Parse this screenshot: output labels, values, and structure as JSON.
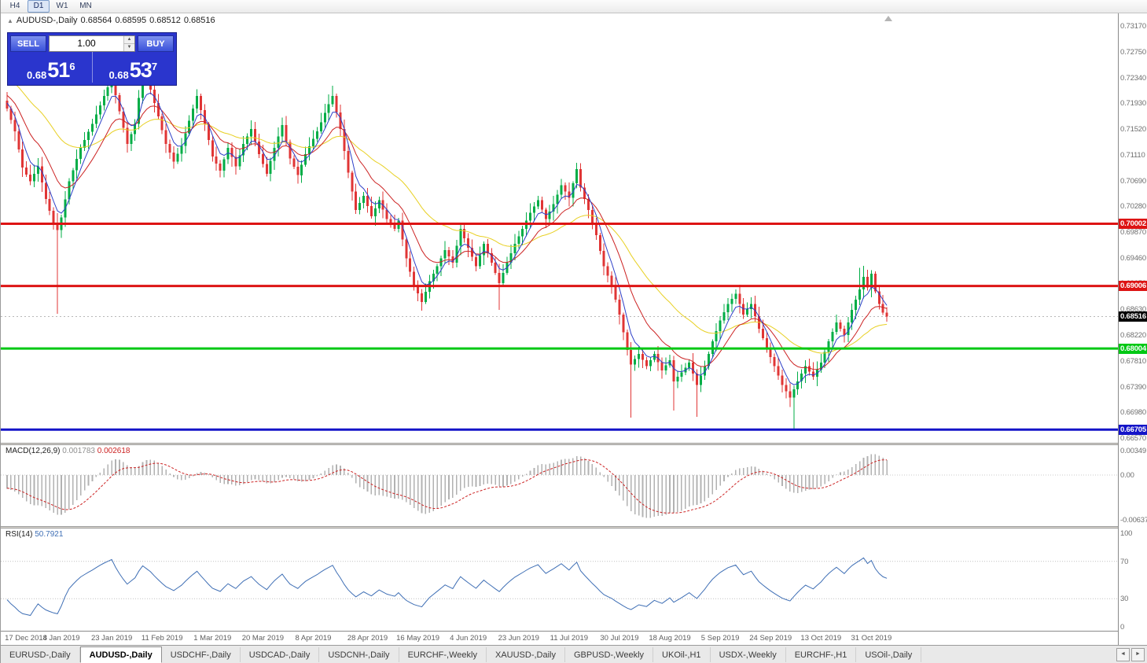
{
  "toolbar": {
    "timeframes": [
      {
        "label": "H4",
        "active": false
      },
      {
        "label": "D1",
        "active": true
      },
      {
        "label": "W1",
        "active": false
      },
      {
        "label": "MN",
        "active": false
      }
    ]
  },
  "symbol_header": {
    "symbol": "AUDUSD-,Daily",
    "open": "0.68564",
    "high": "0.68595",
    "low": "0.68512",
    "close": "0.68516"
  },
  "trade_panel": {
    "sell_label": "SELL",
    "buy_label": "BUY",
    "volume": "1.00",
    "sell_price": {
      "base": "0.68",
      "big": "51",
      "sup": "6"
    },
    "buy_price": {
      "base": "0.68",
      "big": "53",
      "sup": "7"
    }
  },
  "hlines": [
    {
      "price": 0.70002,
      "label": "0.70002",
      "color": "#dd1414",
      "thickness": 3
    },
    {
      "price": 0.69006,
      "label": "0.69006",
      "color": "#dd1414",
      "thickness": 3
    },
    {
      "price": 0.68004,
      "label": "0.68004",
      "color": "#00c814",
      "thickness": 3
    },
    {
      "price": 0.66705,
      "label": "0.66705",
      "color": "#1414c8",
      "thickness": 3
    }
  ],
  "current_price": {
    "value": 0.68516,
    "label": "0.68516"
  },
  "price_axis": {
    "labels": [
      "0.73170",
      "0.72750",
      "0.72340",
      "0.71930",
      "0.71520",
      "0.71110",
      "0.70690",
      "0.70280",
      "0.69870",
      "0.69460",
      "0.69050",
      "0.68630",
      "0.68220",
      "0.67810",
      "0.67390",
      "0.66980",
      "0.66570"
    ]
  },
  "indicators": {
    "macd": {
      "name": "MACD(12,26,9)",
      "value_main": "0.001783",
      "value_signal": "0.002618",
      "axis_labels": [
        "0.00349",
        "0.00",
        "-0.00637"
      ],
      "fast": 12,
      "slow": 26,
      "signal": 9
    },
    "rsi": {
      "name": "RSI(14)",
      "value": "50.7921",
      "axis_labels": [
        "100",
        "70",
        "30",
        "0"
      ],
      "period": 14,
      "levels": [
        70,
        30
      ]
    }
  },
  "chart_data": {
    "type": "candlestick",
    "title": "AUDUSD-,Daily",
    "x_axis": "date",
    "y_axis": "price",
    "visible_range": {
      "top": 0.7317,
      "bottom": 0.6657
    },
    "bars": 228,
    "close_anchors": [
      [
        0,
        0.7185
      ],
      [
        2,
        0.7148
      ],
      [
        4,
        0.709
      ],
      [
        6,
        0.7068
      ],
      [
        8,
        0.7092
      ],
      [
        10,
        0.704
      ],
      [
        12,
        0.7002
      ],
      [
        13,
        0.699
      ],
      [
        14,
        0.701
      ],
      [
        16,
        0.7068
      ],
      [
        19,
        0.7122
      ],
      [
        22,
        0.716
      ],
      [
        25,
        0.7205
      ],
      [
        27,
        0.7232
      ],
      [
        29,
        0.718
      ],
      [
        31,
        0.7128
      ],
      [
        33,
        0.716
      ],
      [
        35,
        0.7243
      ],
      [
        37,
        0.7215
      ],
      [
        39,
        0.7172
      ],
      [
        41,
        0.7128
      ],
      [
        43,
        0.71
      ],
      [
        45,
        0.7125
      ],
      [
        47,
        0.7165
      ],
      [
        49,
        0.7205
      ],
      [
        51,
        0.716
      ],
      [
        53,
        0.7108
      ],
      [
        55,
        0.7085
      ],
      [
        57,
        0.7122
      ],
      [
        59,
        0.7092
      ],
      [
        61,
        0.7128
      ],
      [
        63,
        0.7152
      ],
      [
        65,
        0.7112
      ],
      [
        67,
        0.708
      ],
      [
        69,
        0.7122
      ],
      [
        71,
        0.7158
      ],
      [
        73,
        0.7105
      ],
      [
        75,
        0.7078
      ],
      [
        77,
        0.7112
      ],
      [
        80,
        0.7148
      ],
      [
        82,
        0.7178
      ],
      [
        84,
        0.7205
      ],
      [
        86,
        0.7152
      ],
      [
        88,
        0.7082
      ],
      [
        90,
        0.7022
      ],
      [
        92,
        0.7045
      ],
      [
        94,
        0.7012
      ],
      [
        96,
        0.7038
      ],
      [
        98,
        0.7008
      ],
      [
        100,
        0.6992
      ],
      [
        101,
        0.7005
      ],
      [
        103,
        0.6945
      ],
      [
        105,
        0.6902
      ],
      [
        107,
        0.6875
      ],
      [
        109,
        0.6908
      ],
      [
        111,
        0.6932
      ],
      [
        113,
        0.6958
      ],
      [
        115,
        0.6938
      ],
      [
        117,
        0.6992
      ],
      [
        119,
        0.6962
      ],
      [
        121,
        0.6932
      ],
      [
        123,
        0.6968
      ],
      [
        125,
        0.6938
      ],
      [
        127,
        0.6905
      ],
      [
        129,
        0.6938
      ],
      [
        131,
        0.6968
      ],
      [
        133,
        0.6992
      ],
      [
        135,
        0.7018
      ],
      [
        137,
        0.7038
      ],
      [
        139,
        0.7008
      ],
      [
        141,
        0.7032
      ],
      [
        143,
        0.7062
      ],
      [
        145,
        0.7042
      ],
      [
        147,
        0.7088
      ],
      [
        148,
        0.7058
      ],
      [
        150,
        0.7022
      ],
      [
        152,
        0.6982
      ],
      [
        154,
        0.6932
      ],
      [
        156,
        0.6902
      ],
      [
        158,
        0.6855
      ],
      [
        160,
        0.6798
      ],
      [
        161,
        0.6775
      ],
      [
        163,
        0.6792
      ],
      [
        165,
        0.6772
      ],
      [
        167,
        0.6792
      ],
      [
        169,
        0.6765
      ],
      [
        171,
        0.6782
      ],
      [
        172,
        0.6748
      ],
      [
        174,
        0.6762
      ],
      [
        176,
        0.6778
      ],
      [
        178,
        0.6742
      ],
      [
        180,
        0.6772
      ],
      [
        182,
        0.6812
      ],
      [
        184,
        0.6845
      ],
      [
        186,
        0.6872
      ],
      [
        188,
        0.6888
      ],
      [
        190,
        0.6855
      ],
      [
        192,
        0.6872
      ],
      [
        194,
        0.6832
      ],
      [
        196,
        0.6802
      ],
      [
        198,
        0.6772
      ],
      [
        200,
        0.6742
      ],
      [
        202,
        0.6722
      ],
      [
        204,
        0.6748
      ],
      [
        206,
        0.6772
      ],
      [
        208,
        0.6755
      ],
      [
        210,
        0.6778
      ],
      [
        212,
        0.6812
      ],
      [
        214,
        0.6842
      ],
      [
        216,
        0.6822
      ],
      [
        218,
        0.6862
      ],
      [
        220,
        0.6895
      ],
      [
        221,
        0.6915
      ],
      [
        222,
        0.6898
      ],
      [
        223,
        0.692
      ],
      [
        224,
        0.6892
      ],
      [
        225,
        0.6872
      ],
      [
        226,
        0.6858
      ],
      [
        227,
        0.68516
      ]
    ],
    "wick_events": [
      {
        "bar": 13,
        "low": 0.6856
      },
      {
        "bar": 27,
        "high": 0.7246
      },
      {
        "bar": 35,
        "high": 0.7251
      },
      {
        "bar": 84,
        "high": 0.7221
      },
      {
        "bar": 127,
        "low": 0.6862
      },
      {
        "bar": 161,
        "low": 0.669
      },
      {
        "bar": 172,
        "low": 0.6701
      },
      {
        "bar": 178,
        "low": 0.6691
      },
      {
        "bar": 203,
        "low": 0.6671
      },
      {
        "bar": 220,
        "high": 0.693
      },
      {
        "bar": 221,
        "high": 0.6933
      },
      {
        "bar": 223,
        "high": 0.6926
      }
    ],
    "date_ticks": [
      {
        "bar": 0,
        "label": "17 Dec 2018"
      },
      {
        "bar": 14,
        "label": "4 Jan 2019"
      },
      {
        "bar": 27,
        "label": "23 Jan 2019"
      },
      {
        "bar": 40,
        "label": "11 Feb 2019"
      },
      {
        "bar": 53,
        "label": "1 Mar 2019"
      },
      {
        "bar": 66,
        "label": "20 Mar 2019"
      },
      {
        "bar": 79,
        "label": "8 Apr 2019"
      },
      {
        "bar": 93,
        "label": "28 Apr 2019"
      },
      {
        "bar": 106,
        "label": "16 May 2019"
      },
      {
        "bar": 119,
        "label": "4 Jun 2019"
      },
      {
        "bar": 132,
        "label": "23 Jun 2019"
      },
      {
        "bar": 145,
        "label": "11 Jul 2019"
      },
      {
        "bar": 158,
        "label": "30 Jul 2019"
      },
      {
        "bar": 171,
        "label": "18 Aug 2019"
      },
      {
        "bar": 184,
        "label": "5 Sep 2019"
      },
      {
        "bar": 197,
        "label": "24 Sep 2019"
      },
      {
        "bar": 210,
        "label": "13 Oct 2019"
      },
      {
        "bar": 223,
        "label": "31 Oct 2019"
      }
    ],
    "moving_averages": [
      {
        "period": 5,
        "color": "#2d3fc8"
      },
      {
        "period": 13,
        "color": "#cc2222"
      },
      {
        "period": 34,
        "color": "#e8d024"
      }
    ]
  },
  "tabs": [
    {
      "label": "EURUSD-,Daily",
      "active": false
    },
    {
      "label": "AUDUSD-,Daily",
      "active": true
    },
    {
      "label": "USDCHF-,Daily",
      "active": false
    },
    {
      "label": "USDCAD-,Daily",
      "active": false
    },
    {
      "label": "USDCNH-,Daily",
      "active": false
    },
    {
      "label": "EURCHF-,Weekly",
      "active": false
    },
    {
      "label": "XAUUSD-,Daily",
      "active": false
    },
    {
      "label": "GBPUSD-,Weekly",
      "active": false
    },
    {
      "label": "UKOil-,H1",
      "active": false
    },
    {
      "label": "USDX-,Weekly",
      "active": false
    },
    {
      "label": "EURCHF-,H1",
      "active": false
    },
    {
      "label": "USOil-,Daily",
      "active": false
    }
  ],
  "tab_scroll": {
    "left": "◄",
    "right": "►"
  },
  "colors": {
    "bull": "#00ad46",
    "bear": "#e03535",
    "macd_hist": "#b2b2b2",
    "macd_signal": "#cc2222",
    "rsi": "#3f6fb5",
    "current_line": "#b8b8b8"
  }
}
